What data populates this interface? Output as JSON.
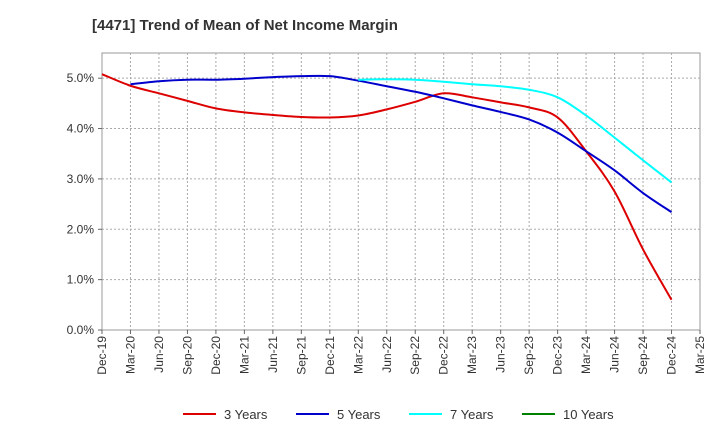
{
  "chart_data": {
    "type": "line",
    "title": "[4471]  Trend of Mean of Net Income Margin",
    "xlabel": "",
    "ylabel": "",
    "x_tick_labels": [
      "Dec-19",
      "Mar-20",
      "Jun-20",
      "Sep-20",
      "Dec-20",
      "Mar-21",
      "Jun-21",
      "Sep-21",
      "Dec-21",
      "Mar-22",
      "Jun-22",
      "Sep-22",
      "Dec-22",
      "Mar-23",
      "Jun-23",
      "Sep-23",
      "Dec-23",
      "Mar-24",
      "Jun-24",
      "Sep-24",
      "Dec-24",
      "Mar-25"
    ],
    "y_tick_labels": [
      "0.0%",
      "1.0%",
      "2.0%",
      "3.0%",
      "4.0%",
      "5.0%"
    ],
    "ylim": [
      0,
      5.5
    ],
    "y_ticks": [
      0,
      1,
      2,
      3,
      4,
      5
    ],
    "grid": true,
    "legend_position": "bottom",
    "series": [
      {
        "name": "3 Years",
        "color": "#dd0000",
        "x": [
          "Dec-19",
          "Mar-20",
          "Jun-20",
          "Sep-20",
          "Dec-20",
          "Mar-21",
          "Jun-21",
          "Sep-21",
          "Dec-21",
          "Mar-22",
          "Jun-22",
          "Sep-22",
          "Dec-22",
          "Mar-23",
          "Jun-23",
          "Sep-23",
          "Dec-23",
          "Mar-24",
          "Jun-24",
          "Sep-24",
          "Dec-24"
        ],
        "values": [
          5.08,
          4.85,
          4.7,
          4.55,
          4.4,
          4.32,
          4.27,
          4.23,
          4.22,
          4.26,
          4.38,
          4.53,
          4.7,
          4.62,
          4.52,
          4.42,
          4.22,
          3.55,
          2.75,
          1.6,
          0.6
        ]
      },
      {
        "name": "5 Years",
        "color": "#0000cc",
        "x": [
          "Mar-20",
          "Jun-20",
          "Sep-20",
          "Dec-20",
          "Mar-21",
          "Jun-21",
          "Sep-21",
          "Dec-21",
          "Mar-22",
          "Jun-22",
          "Sep-22",
          "Dec-22",
          "Mar-23",
          "Jun-23",
          "Sep-23",
          "Dec-23",
          "Mar-24",
          "Jun-24",
          "Sep-24",
          "Dec-24"
        ],
        "values": [
          4.88,
          4.94,
          4.97,
          4.97,
          4.99,
          5.02,
          5.04,
          5.04,
          4.95,
          4.84,
          4.73,
          4.6,
          4.46,
          4.33,
          4.18,
          3.92,
          3.55,
          3.17,
          2.72,
          2.34
        ]
      },
      {
        "name": "7 Years",
        "color": "#00ffff",
        "x": [
          "Mar-22",
          "Jun-22",
          "Sep-22",
          "Dec-22",
          "Mar-23",
          "Jun-23",
          "Sep-23",
          "Dec-23",
          "Mar-24",
          "Jun-24",
          "Sep-24",
          "Dec-24"
        ],
        "values": [
          4.97,
          4.98,
          4.97,
          4.93,
          4.88,
          4.84,
          4.77,
          4.62,
          4.26,
          3.82,
          3.37,
          2.93
        ]
      },
      {
        "name": "10 Years",
        "color": "#008000",
        "x": [],
        "values": []
      }
    ]
  }
}
